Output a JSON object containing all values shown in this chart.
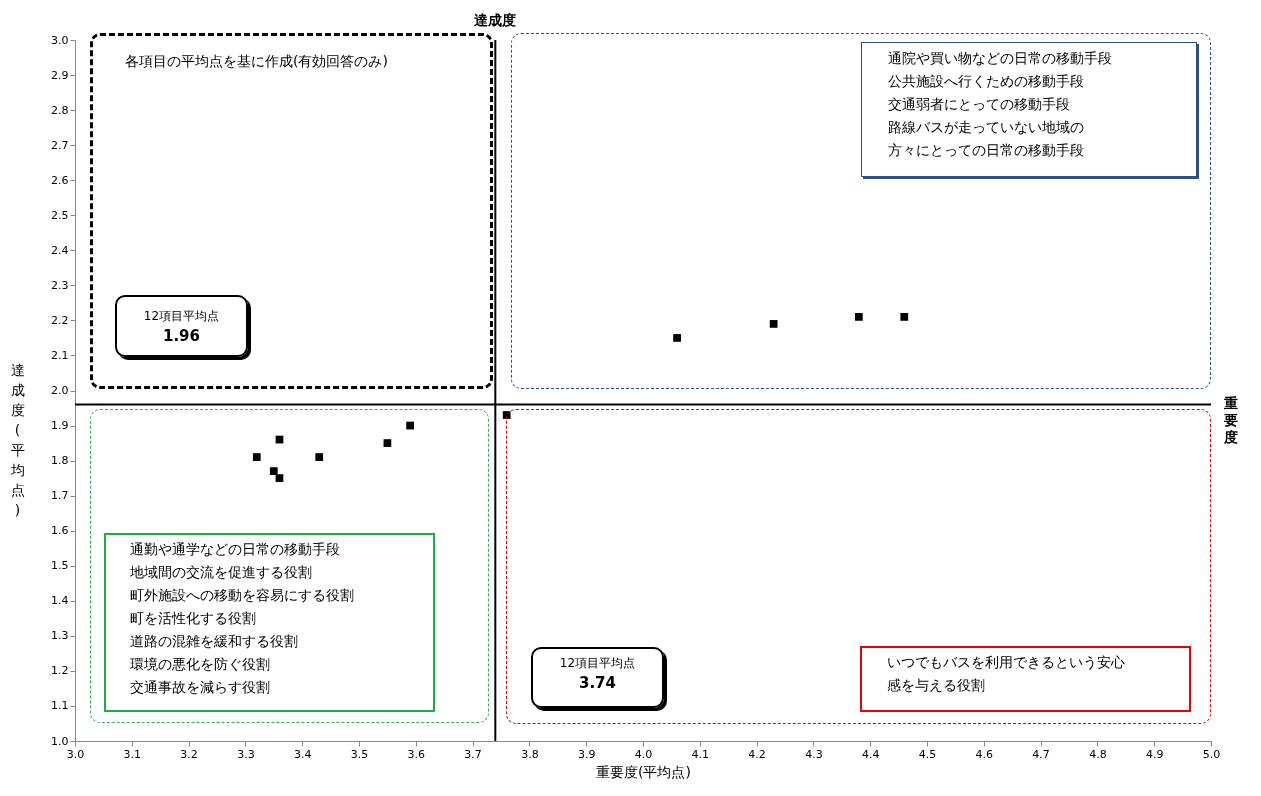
{
  "chart_data": {
    "type": "scatter",
    "xlabel": "重要度(平均点)",
    "ylabel": "達成度(平均点)",
    "marker": "square",
    "x": [
      4.06,
      4.23,
      4.38,
      4.46,
      3.76,
      3.59,
      3.55,
      3.43,
      3.36,
      3.32,
      3.35,
      3.36
    ],
    "series": [
      {
        "color": "#000000",
        "values": [
          2.15,
          2.19,
          2.21,
          2.21,
          1.93,
          1.9,
          1.85,
          1.81,
          1.86,
          1.81,
          1.77,
          1.75
        ]
      }
    ],
    "xlim": [
      3,
      5
    ],
    "ylim": [
      1,
      3
    ],
    "xticks": [
      {
        "value": 3,
        "label": "3.0"
      },
      3.1,
      3.2,
      3.3,
      3.4,
      3.5,
      3.6,
      3.7,
      3.8,
      3.9,
      {
        "value": 4,
        "label": "4.0"
      },
      4.1,
      4.2,
      4.3,
      4.4,
      4.5,
      4.6,
      4.7,
      4.8,
      4.9,
      {
        "value": 5,
        "label": "5.0"
      }
    ],
    "yticks": [
      {
        "value": 1,
        "label": "1.0"
      },
      1.1,
      1.2,
      1.3,
      1.4,
      1.5,
      1.6,
      1.7,
      1.8,
      1.9,
      {
        "value": 2,
        "label": "2.0"
      },
      2.1,
      2.2,
      2.3,
      2.4,
      2.5,
      2.6,
      2.7,
      2.8,
      2.9,
      {
        "value": 3,
        "label": "3.0"
      }
    ],
    "ref_lines": [
      {
        "axis": "x",
        "value": 3.74,
        "label": "達成度"
      },
      {
        "axis": "y",
        "value": 1.96,
        "label": "重要度"
      }
    ],
    "annotations": [
      "各項目の平均点を基に作成(有効回答のみ)",
      "通院や買い物などの日常の移動手段",
      "公共施設へ行くための移動手段",
      "交通弱者にとっての移動手段",
      "路線バスが走っていない地域の方々にとっての日常の移動手段",
      "通勤や通学などの日常の移動手段",
      "地域間の交流を促進する役割",
      "町外施設への移動を容易にする役割",
      "町を活性化する役割",
      "道路の混雑を緩和する役割",
      "環境の悪化を防ぐ役割",
      "交通事故を減らす役割",
      "いつでもバスを利用できるという安心感を与える役割",
      "12項目平均点",
      "1.96",
      "12項目平均点",
      "3.74"
    ]
  }
}
